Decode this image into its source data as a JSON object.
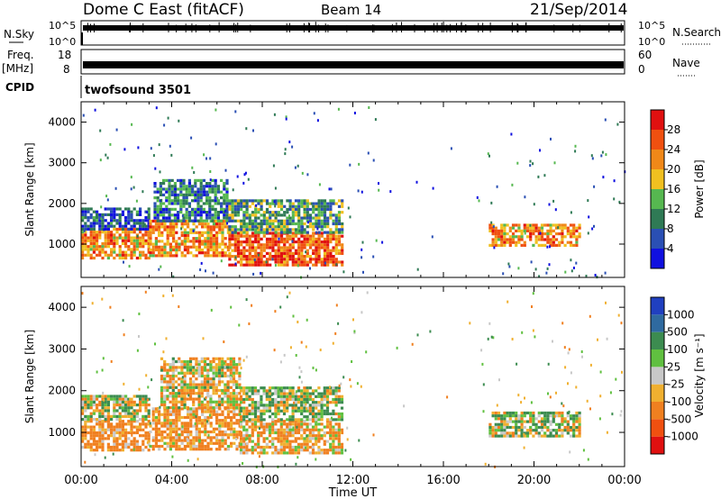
{
  "header": {
    "title": "Dome C East (fitACF)",
    "beam": "Beam 14",
    "date": "21/Sep/2014"
  },
  "noise_panel": {
    "left_label": "N.Sky",
    "right_label": "N.Search",
    "ticks": [
      "10^5",
      "10^0"
    ]
  },
  "freq_panel": {
    "left_label": "Freq.",
    "unit": "[MHz]",
    "left_ticks": [
      "18",
      "8"
    ],
    "right_ticks": [
      "60",
      "0"
    ],
    "right_label": "Nave"
  },
  "cpid": {
    "label": "CPID",
    "value": "twofsound 3501"
  },
  "colors": {
    "power": [
      "#1010e0",
      "#2a4fb4",
      "#2f7a55",
      "#56b850",
      "#f0c020",
      "#f08818",
      "#f05010",
      "#e01010"
    ],
    "velocity": [
      "#2040c0",
      "#2f6aa0",
      "#3c8c50",
      "#60c040",
      "#c8c8c8",
      "#f0b030",
      "#f08020",
      "#f05010",
      "#e01010"
    ]
  },
  "chart_data": [
    {
      "type": "heatmap",
      "name": "power",
      "ylabel": "Slant Range [km]",
      "xlabel": "",
      "x_ticks": [
        "00:00",
        "04:00",
        "08:00",
        "12:00",
        "16:00",
        "20:00",
        "00:00"
      ],
      "y_ticks": [
        "1000",
        "2000",
        "3000",
        "4000"
      ],
      "xlim": [
        0,
        24
      ],
      "ylim": [
        180,
        4500
      ],
      "colorbar": {
        "label": "Power [dB]",
        "ticks": [
          "4",
          "8",
          "12",
          "16",
          "20",
          "24",
          "28"
        ],
        "range": [
          0,
          32
        ]
      },
      "regions": [
        {
          "t0": 0.0,
          "t1": 3.0,
          "r0": 650,
          "r1": 1400,
          "value": 22
        },
        {
          "t0": 0.0,
          "t1": 3.0,
          "r0": 1400,
          "r1": 1900,
          "value": 6
        },
        {
          "t0": 3.0,
          "t1": 6.5,
          "r0": 700,
          "r1": 1600,
          "value": 22
        },
        {
          "t0": 3.2,
          "t1": 6.5,
          "r0": 1600,
          "r1": 2600,
          "value": 9
        },
        {
          "t0": 6.5,
          "t1": 11.5,
          "r0": 500,
          "r1": 1300,
          "value": 26
        },
        {
          "t0": 6.5,
          "t1": 11.5,
          "r0": 1300,
          "r1": 2100,
          "value": 12
        },
        {
          "t0": 18.0,
          "t1": 22.0,
          "r0": 1000,
          "r1": 1500,
          "value": 22
        }
      ]
    },
    {
      "type": "heatmap",
      "name": "velocity",
      "ylabel": "Slant Range [km]",
      "xlabel": "Time UT",
      "x_ticks": [
        "00:00",
        "04:00",
        "08:00",
        "12:00",
        "16:00",
        "20:00",
        "00:00"
      ],
      "y_ticks": [
        "1000",
        "2000",
        "3000",
        "4000"
      ],
      "xlim": [
        0,
        24
      ],
      "ylim": [
        180,
        4500
      ],
      "colorbar": {
        "label": "Velocity [m s⁻¹]",
        "ticks": [
          "1000",
          "500",
          "100",
          "25",
          "-25",
          "-100",
          "-500",
          "-1000"
        ]
      },
      "regions": [
        {
          "t0": 0.0,
          "t1": 3.0,
          "r0": 600,
          "r1": 1300,
          "value": -200
        },
        {
          "t0": 0.0,
          "t1": 3.0,
          "r0": 1300,
          "r1": 1900,
          "value": 0
        },
        {
          "t0": 3.0,
          "t1": 7.0,
          "r0": 600,
          "r1": 1600,
          "value": -150
        },
        {
          "t0": 3.5,
          "t1": 7.0,
          "r0": 1600,
          "r1": 2800,
          "value": -60
        },
        {
          "t0": 7.0,
          "t1": 11.5,
          "r0": 500,
          "r1": 1300,
          "value": -120
        },
        {
          "t0": 7.0,
          "t1": 11.5,
          "r0": 1300,
          "r1": 2100,
          "value": 60
        },
        {
          "t0": 18.0,
          "t1": 22.0,
          "r0": 900,
          "r1": 1500,
          "value": 40
        }
      ]
    }
  ]
}
